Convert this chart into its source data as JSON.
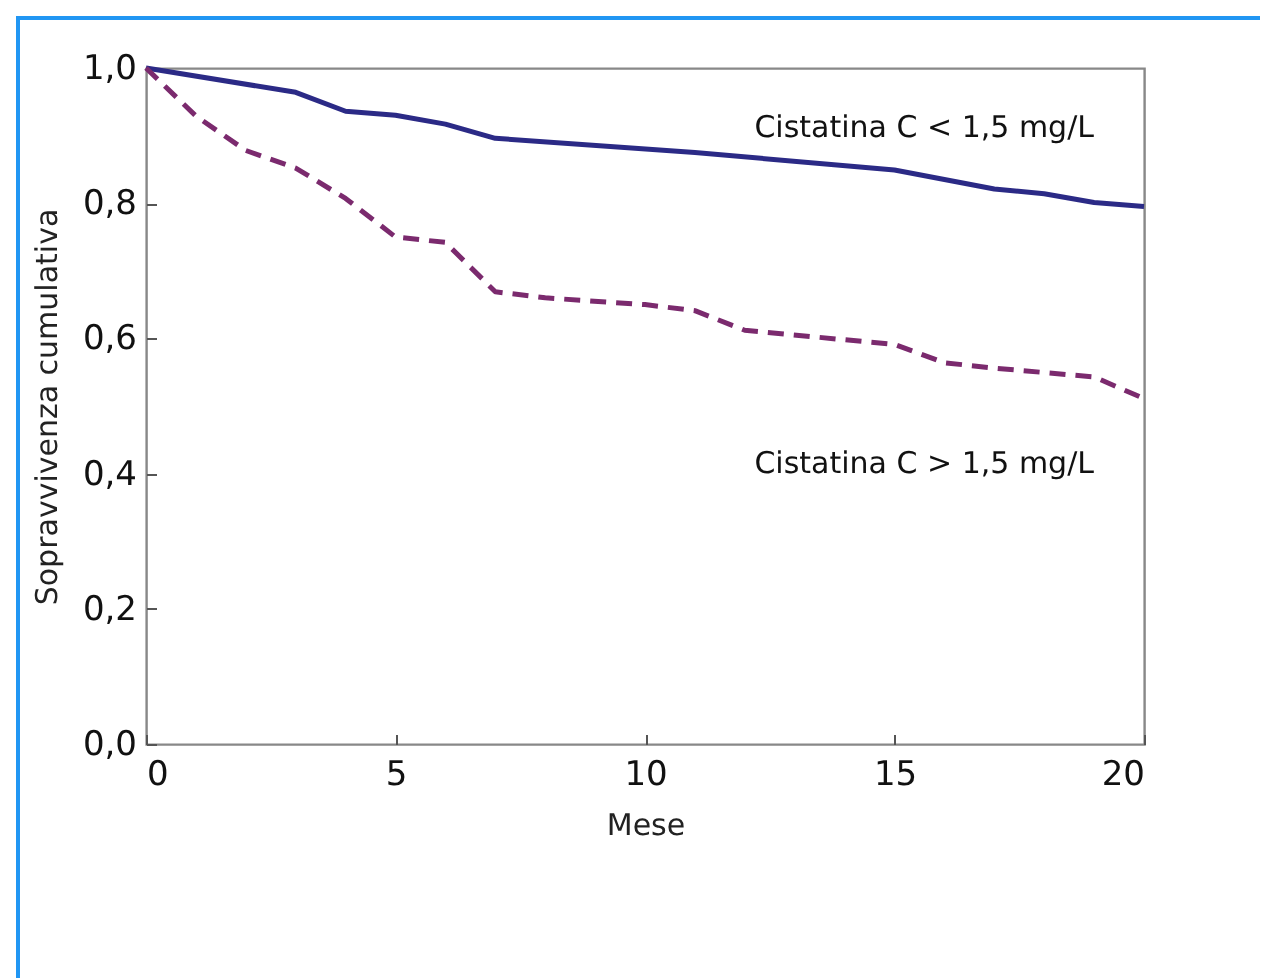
{
  "chart_data": {
    "type": "line",
    "xlabel": "Mese",
    "ylabel": "Sopravvivenza cumulativa",
    "xlim": [
      0,
      20
    ],
    "xticks": [
      0,
      5,
      10,
      15,
      20
    ],
    "ylim": [
      0,
      1
    ],
    "yticks": [
      {
        "value": 0,
        "label": "0,0"
      },
      {
        "value": 0.2,
        "label": "0,2"
      },
      {
        "value": 0.4,
        "label": "0,4"
      },
      {
        "value": 0.6,
        "label": "0,6"
      },
      {
        "value": 0.8,
        "label": "0,8"
      },
      {
        "value": 1,
        "label": "1,0"
      }
    ],
    "grid": false,
    "marker": "none",
    "series": [
      {
        "name": "Cistatina C < 1,5 mg/L",
        "color": "#2b2a86",
        "line_style": "solid",
        "x": [
          0,
          3,
          4,
          5,
          6,
          7,
          11,
          15,
          17,
          18,
          19,
          20
        ],
        "values": [
          1.0,
          0.964,
          0.936,
          0.93,
          0.917,
          0.896,
          0.875,
          0.849,
          0.821,
          0.814,
          0.801,
          0.795
        ]
      },
      {
        "name": "Cistatina C > 1,5 mg/L",
        "color": "#7b2a6e",
        "line_style": "dashed",
        "x": [
          0,
          1,
          2,
          3,
          4,
          5,
          6,
          7,
          8,
          10,
          11,
          12,
          15,
          16,
          17,
          19,
          20
        ],
        "values": [
          1.0,
          0.929,
          0.878,
          0.852,
          0.807,
          0.75,
          0.742,
          0.669,
          0.66,
          0.65,
          0.641,
          0.612,
          0.591,
          0.564,
          0.556,
          0.543,
          0.511
        ]
      }
    ]
  }
}
